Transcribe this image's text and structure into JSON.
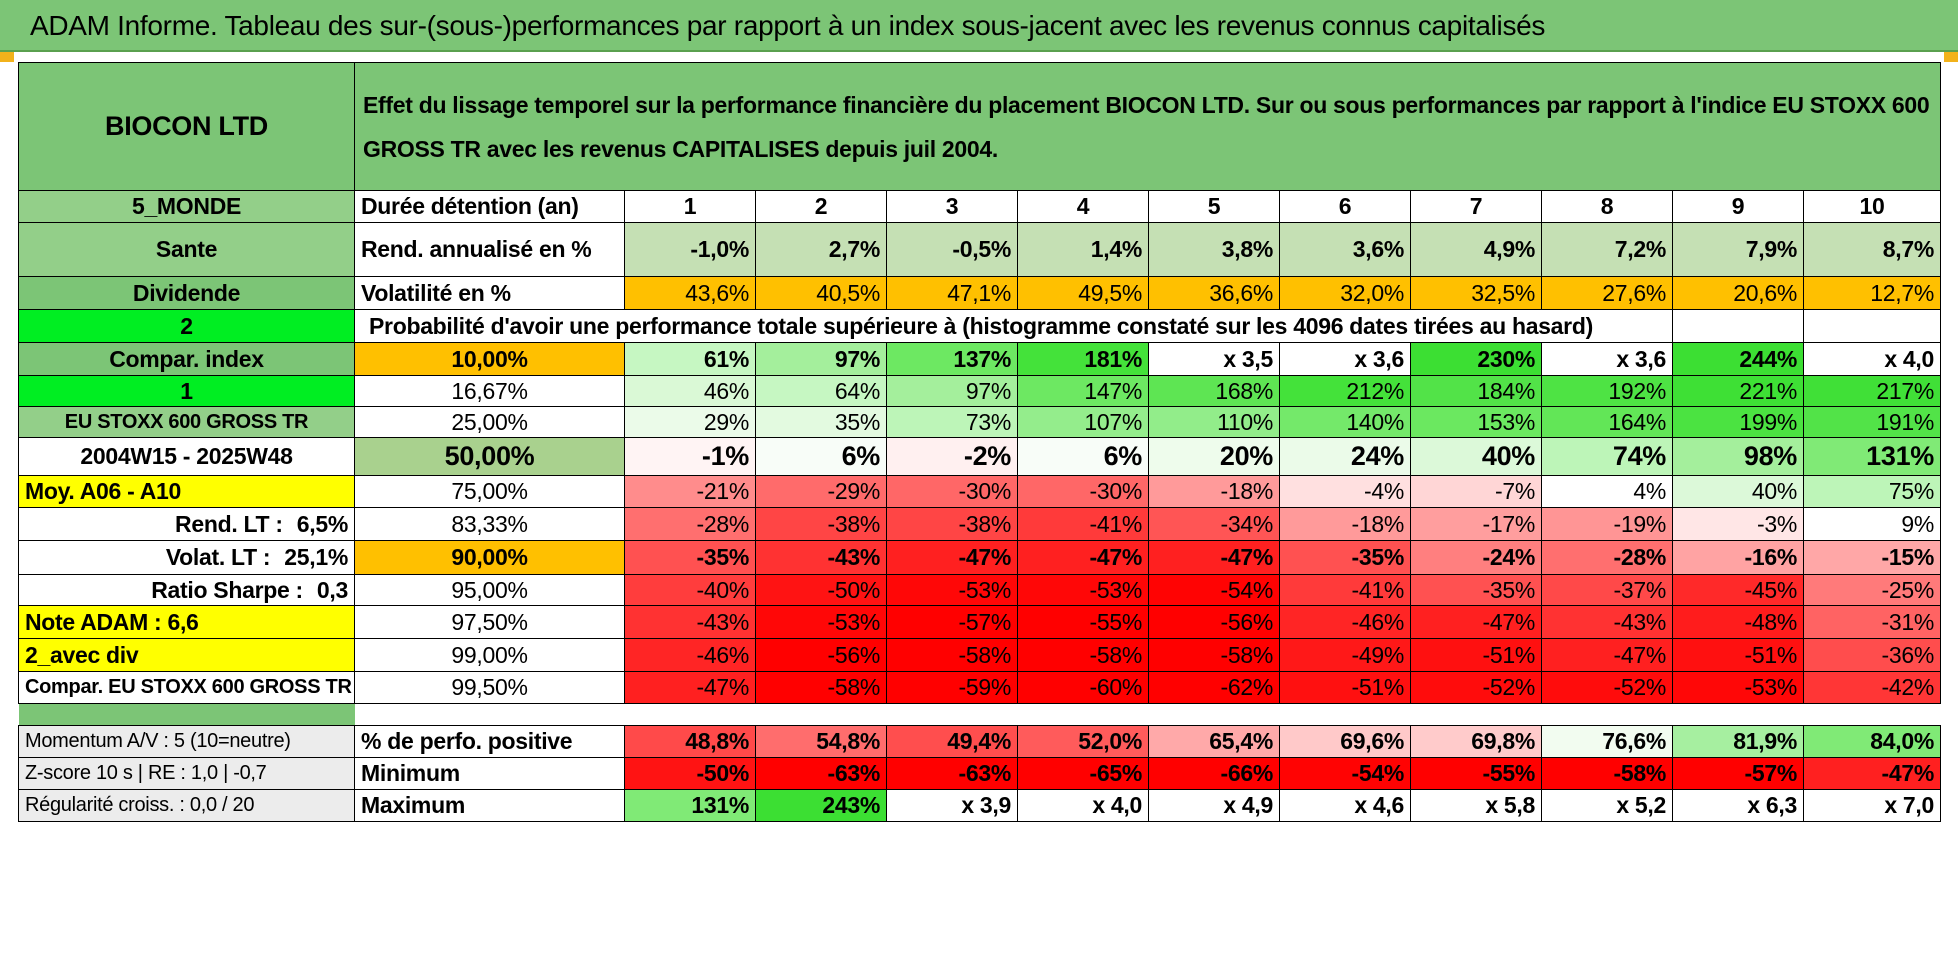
{
  "banner": "ADAM Informe. Tableau des sur-(sous-)performances par rapport à un index sous-jacent avec les revenus connus capitalisés",
  "stock": "BIOCON LTD",
  "title": "Effet du lissage temporel sur la performance financière du placement BIOCON LTD. Sur ou sous performances par rapport à l'indice EU STOXX 600 GROSS TR avec les revenus CAPITALISES depuis juil 2004.",
  "side": {
    "region": "5_MONDE",
    "sector": "Sante",
    "dividend_label": "Dividende",
    "dividend_value": "2",
    "compar_index_label": "Compar. index",
    "compar_index_value": "1",
    "index_name": "EU STOXX 600 GROSS TR",
    "period": "2004W15 - 2025W48",
    "moy": "Moy. A06 - A10",
    "rend_lt_label": "Rend. LT :",
    "rend_lt_value": "6,5%",
    "volat_lt_label": "Volat. LT :",
    "volat_lt_value": "25,1%",
    "sharpe_label": "Ratio Sharpe :",
    "sharpe_value": "0,3",
    "note": "Note ADAM : 6,6",
    "avec_div": "2_avec div",
    "compar_full": "Compar. EU STOXX 600 GROSS TR"
  },
  "headers": {
    "duration_label": "Durée détention (an)",
    "years": [
      "1",
      "2",
      "3",
      "4",
      "5",
      "6",
      "7",
      "8",
      "9",
      "10"
    ],
    "rend_label": "Rend. annualisé en %",
    "rend": [
      "-1,0%",
      "2,7%",
      "-0,5%",
      "1,4%",
      "3,8%",
      "3,6%",
      "4,9%",
      "7,2%",
      "7,9%",
      "8,7%"
    ],
    "vol_label": "Volatilité en %",
    "vol": [
      "43,6%",
      "40,5%",
      "47,1%",
      "49,5%",
      "36,6%",
      "32,0%",
      "32,5%",
      "27,6%",
      "20,6%",
      "12,7%"
    ],
    "proba_label": "Probabilité d'avoir une performance totale supérieure à (histogramme constaté sur les 4096 dates tirées au hasard)"
  },
  "prob_rows": [
    {
      "pct": "10,00%",
      "vals": [
        "61%",
        "97%",
        "137%",
        "181%",
        "x 3,5",
        "x 3,6",
        "230%",
        "x 3,6",
        "244%",
        "x 4,0"
      ],
      "colors": [
        "#c6f7c2",
        "#a4ef9c",
        "#6de862",
        "#44e23a",
        "#ffffff",
        "#ffffff",
        "#3cdf33",
        "#ffffff",
        "#3cdf33",
        "#ffffff"
      ],
      "bold": true,
      "pctbg": "#ffc000"
    },
    {
      "pct": "16,67%",
      "vals": [
        "46%",
        "64%",
        "97%",
        "147%",
        "168%",
        "212%",
        "184%",
        "192%",
        "221%",
        "217%"
      ],
      "colors": [
        "#daf9d6",
        "#c6f7c2",
        "#a4ef9c",
        "#6de862",
        "#5ee553",
        "#44e23a",
        "#52e348",
        "#4ee344",
        "#3ee035",
        "#40e037"
      ],
      "bold": false,
      "pctbg": "#ffffff"
    },
    {
      "pct": "25,00%",
      "vals": [
        "29%",
        "35%",
        "73%",
        "107%",
        "110%",
        "140%",
        "153%",
        "164%",
        "199%",
        "191%"
      ],
      "colors": [
        "#ebfbe9",
        "#e3fae0",
        "#bdf5b8",
        "#94ed8c",
        "#92ed8a",
        "#74e96a",
        "#6be860",
        "#62e657",
        "#4be341",
        "#52e348"
      ],
      "bold": false,
      "pctbg": "#ffffff"
    },
    {
      "pct": "50,00%",
      "vals": [
        "-1%",
        "6%",
        "-2%",
        "6%",
        "20%",
        "24%",
        "40%",
        "74%",
        "98%",
        "131%"
      ],
      "colors": [
        "#fff4f4",
        "#f8fdf8",
        "#fff0f0",
        "#f8fdf8",
        "#eefcec",
        "#ebfbe9",
        "#dcf9d9",
        "#bdf5b8",
        "#a4ef9c",
        "#80ea76"
      ],
      "bold": true,
      "big": true,
      "pctbg": "#a9d18e"
    },
    {
      "pct": "75,00%",
      "vals": [
        "-21%",
        "-29%",
        "-30%",
        "-30%",
        "-18%",
        "-4%",
        "-7%",
        "4%",
        "40%",
        "75%"
      ],
      "colors": [
        "#ff8c8c",
        "#ff6b6b",
        "#ff6767",
        "#ff6767",
        "#ff9a9a",
        "#ffe0e0",
        "#ffd6d6",
        "#ffffff",
        "#dcf9d9",
        "#bdf5b8"
      ],
      "bold": false,
      "pctbg": "#ffffff"
    },
    {
      "pct": "83,33%",
      "vals": [
        "-28%",
        "-38%",
        "-38%",
        "-41%",
        "-34%",
        "-18%",
        "-17%",
        "-19%",
        "-3%",
        "9%"
      ],
      "colors": [
        "#ff6f6f",
        "#ff4545",
        "#ff4545",
        "#ff3a3a",
        "#ff5555",
        "#ff9a9a",
        "#ff9e9e",
        "#ff9595",
        "#ffe6e6",
        "#ffffff"
      ],
      "bold": false,
      "pctbg": "#ffffff"
    },
    {
      "pct": "90,00%",
      "vals": [
        "-35%",
        "-43%",
        "-47%",
        "-47%",
        "-47%",
        "-35%",
        "-24%",
        "-28%",
        "-16%",
        "-15%"
      ],
      "colors": [
        "#ff5151",
        "#ff3232",
        "#ff2020",
        "#ff2020",
        "#ff2020",
        "#ff5151",
        "#ff7f7f",
        "#ff6f6f",
        "#ffa3a3",
        "#ffa7a7"
      ],
      "bold": true,
      "pctbg": "#ffc000"
    },
    {
      "pct": "95,00%",
      "vals": [
        "-40%",
        "-50%",
        "-53%",
        "-53%",
        "-54%",
        "-41%",
        "-35%",
        "-37%",
        "-45%",
        "-25%"
      ],
      "colors": [
        "#ff3d3d",
        "#ff1313",
        "#ff0707",
        "#ff0707",
        "#ff0303",
        "#ff3a3a",
        "#ff5151",
        "#ff4949",
        "#ff2929",
        "#ff7a7a"
      ],
      "bold": false,
      "pctbg": "#ffffff"
    },
    {
      "pct": "97,50%",
      "vals": [
        "-43%",
        "-53%",
        "-57%",
        "-55%",
        "-56%",
        "-46%",
        "-47%",
        "-43%",
        "-48%",
        "-31%"
      ],
      "colors": [
        "#ff3232",
        "#ff0707",
        "#ff0000",
        "#ff0000",
        "#ff0000",
        "#ff2525",
        "#ff2020",
        "#ff3232",
        "#ff1c1c",
        "#ff6363"
      ],
      "bold": false,
      "pctbg": "#ffffff"
    },
    {
      "pct": "99,00%",
      "vals": [
        "-46%",
        "-56%",
        "-58%",
        "-58%",
        "-58%",
        "-49%",
        "-51%",
        "-47%",
        "-51%",
        "-36%"
      ],
      "colors": [
        "#ff2525",
        "#ff0000",
        "#ff0000",
        "#ff0000",
        "#ff0000",
        "#ff1818",
        "#ff1010",
        "#ff2020",
        "#ff1010",
        "#ff4d4d"
      ],
      "bold": false,
      "pctbg": "#ffffff"
    },
    {
      "pct": "99,50%",
      "vals": [
        "-47%",
        "-58%",
        "-59%",
        "-60%",
        "-62%",
        "-51%",
        "-52%",
        "-52%",
        "-53%",
        "-42%"
      ],
      "colors": [
        "#ff2020",
        "#ff0000",
        "#ff0000",
        "#ff0000",
        "#ff0000",
        "#ff1010",
        "#ff0c0c",
        "#ff0c0c",
        "#ff0707",
        "#ff3636"
      ],
      "bold": false,
      "pctbg": "#ffffff"
    }
  ],
  "bottom": {
    "momentum": "Momentum A/V : 5 (10=neutre)",
    "zscore": "Z-score 10 s | RE : 1,0 | -0,7",
    "regularite": "Régularité croiss. : 0,0 / 20",
    "pos_label": "% de perfo. positive",
    "pos": [
      "48,8%",
      "54,8%",
      "49,4%",
      "52,0%",
      "65,4%",
      "69,6%",
      "69,8%",
      "76,6%",
      "81,9%",
      "84,0%"
    ],
    "pos_colors": [
      "#ff4a4a",
      "#ff6d6d",
      "#ff4e4e",
      "#ff5b5b",
      "#ffa9a9",
      "#ffc9c9",
      "#ffcbcb",
      "#f2fcf0",
      "#a6efa0",
      "#80ea76"
    ],
    "min_label": "Minimum",
    "min": [
      "-50%",
      "-63%",
      "-63%",
      "-65%",
      "-66%",
      "-54%",
      "-55%",
      "-58%",
      "-57%",
      "-47%"
    ],
    "min_colors": [
      "#ff1313",
      "#ff0000",
      "#ff0000",
      "#ff0000",
      "#ff0000",
      "#ff0303",
      "#ff0000",
      "#ff0000",
      "#ff0000",
      "#ff2020"
    ],
    "max_label": "Maximum",
    "max": [
      "131%",
      "243%",
      "x 3,9",
      "x 4,0",
      "x 4,9",
      "x 4,6",
      "x 5,8",
      "x 5,2",
      "x 6,3",
      "x 7,0"
    ],
    "max_colors": [
      "#80ea76",
      "#3cdf33",
      "#ffffff",
      "#ffffff",
      "#ffffff",
      "#ffffff",
      "#ffffff",
      "#ffffff",
      "#ffffff",
      "#ffffff"
    ]
  },
  "colors": {
    "header_green": "#7cc576",
    "rend_green": "#c5e0b4",
    "vol_orange": "#ffc000",
    "bright_green": "#00ee22",
    "yellow": "#ffff00",
    "red_text": "#d00000"
  }
}
